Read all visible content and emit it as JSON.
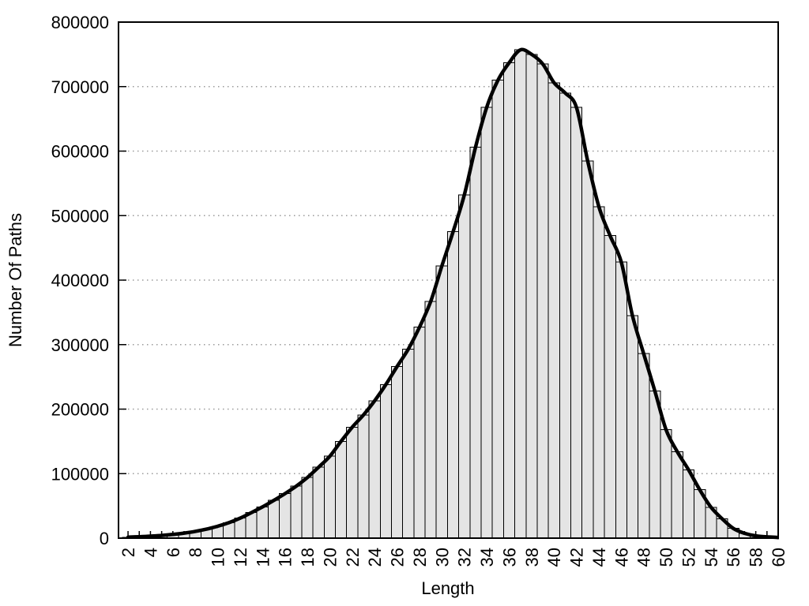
{
  "chart_data": {
    "type": "bar",
    "title": "",
    "xlabel": "Length",
    "ylabel": "Number Of Paths",
    "legend": null,
    "grid": "horizontal-dotted",
    "x": [
      2,
      3,
      4,
      5,
      6,
      7,
      8,
      9,
      10,
      11,
      12,
      13,
      14,
      15,
      16,
      17,
      18,
      19,
      20,
      21,
      22,
      23,
      24,
      25,
      26,
      27,
      28,
      29,
      30,
      31,
      32,
      33,
      34,
      35,
      36,
      37,
      38,
      39,
      40,
      41,
      42,
      43,
      44,
      45,
      46,
      47,
      48,
      49,
      50,
      51,
      52,
      53,
      54,
      55,
      56,
      57,
      58,
      59,
      60
    ],
    "values": [
      1500,
      2200,
      3000,
      4200,
      5800,
      7800,
      10500,
      14000,
      18500,
      24000,
      31000,
      39500,
      48500,
      58500,
      69000,
      80500,
      94000,
      110000,
      127000,
      150000,
      172000,
      191000,
      213000,
      238000,
      266000,
      293000,
      327000,
      367000,
      422000,
      475000,
      532000,
      606000,
      668000,
      710000,
      737000,
      757000,
      750000,
      735000,
      706000,
      690000,
      668000,
      585000,
      514000,
      469000,
      428000,
      345000,
      286000,
      228000,
      168000,
      134000,
      106000,
      75000,
      48000,
      30000,
      15000,
      7500,
      3500,
      2000,
      1000
    ],
    "overlay_line": true,
    "xticks": [
      2,
      4,
      6,
      8,
      10,
      12,
      14,
      16,
      18,
      20,
      22,
      24,
      26,
      28,
      30,
      32,
      34,
      36,
      38,
      40,
      42,
      44,
      46,
      48,
      50,
      52,
      54,
      56,
      58,
      60
    ],
    "yticks": [
      0,
      100000,
      200000,
      300000,
      400000,
      500000,
      600000,
      700000,
      800000
    ],
    "xlim": [
      1.15,
      60
    ],
    "ylim": [
      0,
      800000
    ],
    "colors": {
      "bar_fill": "#e4e4e4",
      "bar_stroke": "#000000",
      "line": "#000000",
      "axis": "#000000",
      "grid": "#9a9a9a",
      "background": "#ffffff",
      "text": "#000000"
    }
  }
}
